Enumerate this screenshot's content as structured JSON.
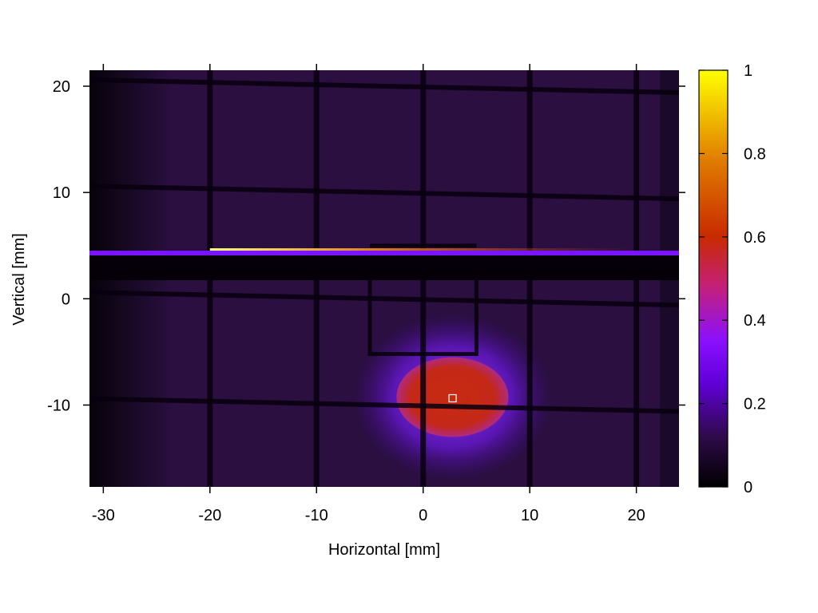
{
  "chart_data": {
    "type": "heatmap",
    "title": "",
    "xlabel": "Horizontal [mm]",
    "ylabel": "Vertical [mm]",
    "xlim": [
      -31.3,
      24
    ],
    "ylim": [
      -17.7,
      21.5
    ],
    "x_ticks": [
      -30,
      -20,
      -10,
      0,
      10,
      20
    ],
    "y_ticks": [
      -10,
      0,
      10,
      20
    ],
    "colorbar": {
      "range": [
        0,
        1
      ],
      "ticks": [
        0,
        0.2,
        0.4,
        0.6,
        0.8,
        1
      ],
      "tick_labels": [
        "0",
        "0.2",
        "0.4",
        "0.6",
        "0.8",
        "1"
      ],
      "colormap": [
        "#000000",
        "#3a0a5a",
        "#7a00ff",
        "#c81a1a",
        "#e86800",
        "#ffff00"
      ]
    },
    "grid": false,
    "features": {
      "beam_spot": {
        "x_range": [
          -2.5,
          8
        ],
        "y_range": [
          -13,
          -5.5
        ],
        "value": 0.48
      },
      "horizontal_bright_line": {
        "x_range": [
          -31,
          24
        ],
        "y": 4.3,
        "value": 0.25
      },
      "bright_segment": {
        "x_range": [
          -20,
          -10
        ],
        "y": 4.6,
        "value": 1.0
      },
      "grid_wires_x": [
        -20,
        -10,
        0,
        10,
        20
      ],
      "grid_wires_y": [
        -10,
        0,
        10,
        20
      ],
      "marker": {
        "x": 2.8,
        "y": -9.4
      }
    }
  },
  "colors": {
    "background_field": "#2a0f40",
    "dark_band": "#050008",
    "axis": "#000000"
  }
}
